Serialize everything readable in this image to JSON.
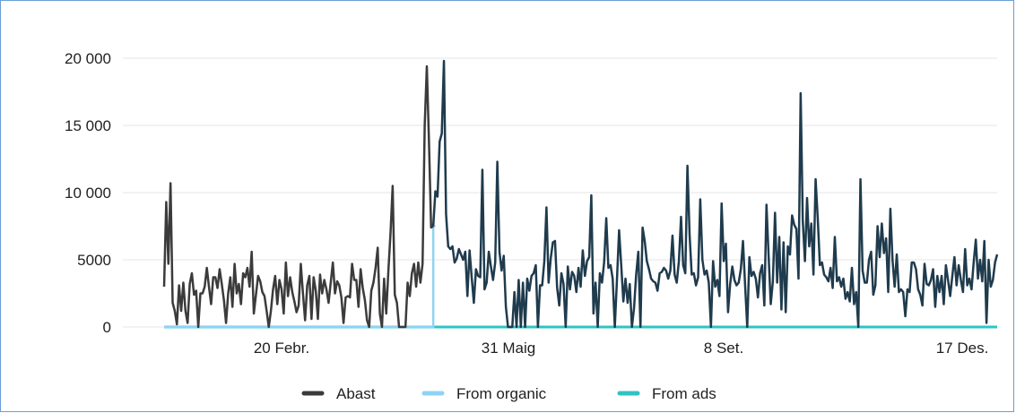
{
  "chart_data": {
    "type": "line",
    "title": "",
    "xlabel": "",
    "ylabel": "",
    "ylim": [
      0,
      20000
    ],
    "y_ticks": [
      0,
      5000,
      10000,
      15000,
      20000
    ],
    "y_tick_labels": [
      "0",
      "5000",
      "10 000",
      "15 000",
      "20 000"
    ],
    "x_tick_labels": [
      "20 Febr.",
      "31 Maig",
      "8 Set.",
      "17 Des."
    ],
    "grid": true,
    "legend_position": "bottom-center",
    "colors": {
      "abast": "#3b3b3b",
      "abast_later": "#1f3b4d",
      "from_organic": "#8fd3f4",
      "from_ads": "#2ec4c4",
      "grid": "#e4e4e4"
    },
    "series": [
      {
        "name": "Abast",
        "values": [
          3000,
          9300,
          4700,
          10700,
          1800,
          1200,
          200,
          3100,
          1200,
          3300,
          1200,
          300,
          3200,
          4000,
          2400,
          2700,
          0,
          2500,
          2500,
          3000,
          4400,
          3000,
          1700,
          3700,
          3700,
          2900,
          4300,
          3200,
          2000,
          300,
          2500,
          3700,
          1500,
          4700,
          2500,
          3200,
          1700,
          4000,
          3700,
          4400,
          3000,
          5600,
          1000,
          2400,
          3800,
          3400,
          2600,
          2300,
          1200,
          0,
          1200,
          2800,
          3800,
          1700,
          3500,
          2800,
          1000,
          4800,
          2300,
          3700,
          2600,
          1900,
          1100,
          1600,
          4700,
          2500,
          500,
          3100,
          3800,
          600,
          3700,
          2700,
          600,
          3900,
          2500,
          3500,
          2800,
          1800,
          3300,
          4800,
          2500,
          3400,
          3100,
          2200,
          300,
          2200,
          2300,
          2200,
          4700,
          3500,
          3500,
          1500,
          4300,
          2900,
          2000,
          500,
          0,
          2700,
          3300,
          4400,
          5900,
          1000,
          0,
          3600,
          1000,
          4200,
          7000,
          10500,
          2400,
          1800,
          0,
          0,
          0,
          0,
          3300,
          2300,
          4000,
          4700,
          3000,
          4800,
          3300,
          4700,
          15000,
          19400,
          13800,
          7400,
          7500
        ],
        "tail_values": [
          7500,
          10100,
          9700,
          13800,
          14400,
          19800,
          8400,
          6000,
          5800,
          6000,
          4800,
          5100,
          5800,
          5400,
          5000,
          5600,
          2300,
          5700,
          3700,
          1800,
          4300,
          3800,
          3700,
          11700,
          2800,
          3300,
          5600,
          4500,
          3500,
          4800,
          12300,
          5600,
          4200,
          5300,
          1500,
          0,
          0,
          0,
          2600,
          0,
          3500,
          0,
          3300,
          0,
          3600,
          2700,
          3800,
          4000,
          4600,
          0,
          3100,
          3100,
          4900,
          8900,
          3300,
          5100,
          6300,
          6400,
          2900,
          1600,
          4000,
          3200,
          0,
          4500,
          2800,
          4100,
          3800,
          2600,
          4400,
          3000,
          5700,
          3800,
          4900,
          5200,
          9800,
          1000,
          3300,
          0,
          4000,
          3300,
          4800,
          8100,
          4400,
          4600,
          3600,
          0,
          3500,
          7200,
          4600,
          1900,
          3600,
          1800,
          3200,
          0,
          1400,
          3900,
          5600,
          0,
          7400,
          6400,
          4900,
          4300,
          3600,
          3400,
          3300,
          2700,
          4000,
          4100,
          4400,
          4200,
          3600,
          4200,
          6800,
          3900,
          3300,
          4900,
          8200,
          4600,
          4000,
          12000,
          6900,
          3900,
          4000,
          3100,
          3700,
          9500,
          5000,
          3900,
          4200,
          3300,
          0,
          4900,
          3000,
          3500,
          2300,
          9200,
          4900,
          6200,
          1100,
          3200,
          4500,
          3500,
          3100,
          3300,
          4300,
          6400,
          3100,
          0,
          5200,
          3800,
          4100,
          3600,
          2200,
          4000,
          4600,
          1600,
          9100,
          5300,
          1700,
          3400,
          8500,
          3300,
          6700,
          1300,
          6300,
          1100,
          6000,
          5400,
          8300,
          7600,
          7300,
          3600,
          17400,
          7900,
          4900,
          9600,
          6000,
          7700,
          3900,
          11000,
          8100,
          4600,
          4800,
          3900,
          3700,
          3400,
          4400,
          2900,
          6700,
          3400,
          3700,
          3000,
          3600,
          2100,
          2600,
          1900,
          4400,
          1700,
          2600,
          0,
          11000,
          4200,
          3300,
          3300,
          5000,
          5600,
          2400,
          3100,
          7500,
          5200,
          7700,
          5500,
          6600,
          2600,
          8800,
          5000,
          3000,
          5400,
          2600,
          2800,
          2600,
          800,
          2800,
          2600,
          4800,
          4800,
          4300,
          2800,
          2400,
          1600,
          4700,
          3200,
          3100,
          3500,
          4300,
          1500,
          3800,
          2600,
          3800,
          1700,
          4600,
          3500,
          2300,
          3800,
          5200,
          3100,
          4600,
          3500,
          2600,
          5800,
          3100,
          3600,
          2800,
          4800,
          6500,
          3600,
          5000,
          3400,
          6400,
          300,
          5000,
          3000,
          3500,
          4800,
          5400
        ]
      },
      {
        "name": "From organic",
        "values": [
          0,
          0,
          0,
          0,
          0,
          0,
          0,
          0,
          7500
        ],
        "note_step_index": 126
      },
      {
        "name": "From ads",
        "values": [
          0,
          0
        ]
      }
    ]
  },
  "legend": {
    "items": [
      {
        "label": "Abast",
        "color": "#3b3b3b"
      },
      {
        "label": "From organic",
        "color": "#8fd3f4"
      },
      {
        "label": "From ads",
        "color": "#2ec4c4"
      }
    ]
  }
}
